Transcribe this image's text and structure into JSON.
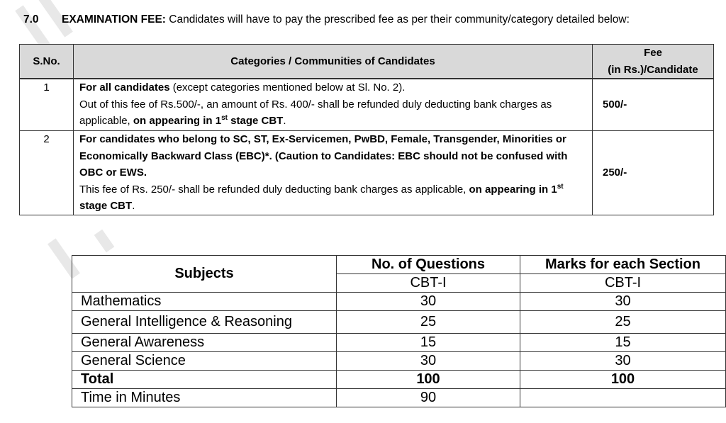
{
  "section": {
    "number": "7.0",
    "title": "EXAMINATION FEE:",
    "text": " Candidates will have to pay the prescribed fee as per their community/category detailed below:"
  },
  "fee_table": {
    "headers": {
      "sno": "S.No.",
      "category": "Categories / Communities of Candidates",
      "fee_line1": "Fee",
      "fee_line2": "(in Rs.)/Candidate"
    },
    "rows": [
      {
        "sno": "1",
        "bold_lead": "For all candidates",
        "text1": " (except categories mentioned below at Sl. No. 2).",
        "text2": "Out of this fee of Rs.500/-, an amount of Rs. 400/- shall be refunded duly deducting bank charges as applicable, ",
        "bold_tail": "on appearing in 1",
        "sup": "st",
        "bold_end": " stage CBT",
        "end": ".",
        "fee": "500/-"
      },
      {
        "sno": "2",
        "bold_lead": "For candidates who belong to SC, ST, Ex-Servicemen, PwBD, Female, Transgender, Minorities or Economically Backward Class (EBC)*. (Caution to Candidates: EBC should not be confused with OBC or EWS.",
        "text2": "This fee of Rs. 250/- shall be refunded duly deducting bank charges as applicable, ",
        "bold_tail": "on appearing in 1",
        "sup": "st",
        "bold_end": " stage CBT",
        "end": ".",
        "fee": "250/-"
      }
    ]
  },
  "exam_table": {
    "headers": {
      "subjects": "Subjects",
      "questions": "No. of Questions",
      "marks": "Marks for each Section",
      "sub_q": "CBT-I",
      "sub_m": "CBT-I"
    },
    "rows": [
      {
        "subject": "Mathematics",
        "questions": "30",
        "marks": "30"
      },
      {
        "subject": "General Intelligence & Reasoning",
        "questions": "25",
        "marks": "25"
      },
      {
        "subject": "General Awareness",
        "questions": "15",
        "marks": "15"
      },
      {
        "subject": "General Science",
        "questions": "30",
        "marks": "30"
      },
      {
        "subject": "Total",
        "questions": "100",
        "marks": "100"
      },
      {
        "subject": "Time in Minutes",
        "questions": "90",
        "marks": ""
      }
    ]
  }
}
